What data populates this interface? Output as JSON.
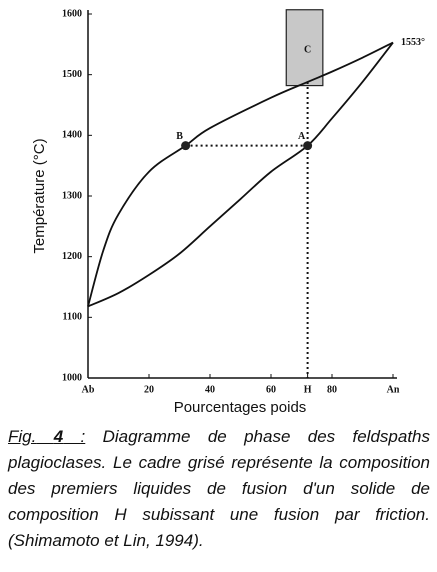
{
  "chart_data": {
    "type": "line",
    "ylabel": "Température (°C)",
    "xlabel": "Pourcentages poids",
    "xlim": [
      0,
      100
    ],
    "ylim": [
      1000,
      1600
    ],
    "xticks": [
      {
        "value": 0,
        "label": "Ab"
      },
      20,
      40,
      60,
      {
        "value": 72,
        "label": "H"
      },
      80,
      {
        "value": 100,
        "label": "An"
      }
    ],
    "yticks": [
      1000,
      1100,
      1200,
      1300,
      1400,
      1500,
      1600
    ],
    "series": [
      {
        "color": "#111111",
        "x": [
          0,
          5,
          10,
          20,
          32,
          40,
          60,
          72,
          80,
          90,
          100
        ],
        "values": [
          1118,
          1210,
          1270,
          1340,
          1383,
          1412,
          1462,
          1488,
          1505,
          1528,
          1553
        ]
      },
      {
        "color": "#111111",
        "x": [
          0,
          10,
          20,
          30,
          40,
          50,
          60,
          72,
          80,
          90,
          100
        ],
        "values": [
          1118,
          1140,
          1170,
          1205,
          1250,
          1295,
          1340,
          1383,
          1428,
          1488,
          1553
        ]
      }
    ],
    "points": [
      {
        "label": "B",
        "x": 32,
        "y": 1383
      },
      {
        "label": "A",
        "x": 72,
        "y": 1383
      }
    ],
    "annotations": [
      {
        "text": "C",
        "x": 72,
        "y": 1540
      },
      {
        "text": "1553°",
        "x": 100,
        "y": 1553
      }
    ],
    "shaded_region": {
      "x": [
        65,
        77
      ],
      "y": [
        1482,
        1607
      ]
    }
  },
  "caption": {
    "figure": "Fig.",
    "number": "4",
    "separator": ":",
    "text": "Diagramme de phase des feldspaths plagioclases. Le cadre grisé représente la composition des premiers liquides de fusion d'un solide de composition H subissant une fusion par friction. (Shimamoto et Lin, 1994)."
  }
}
